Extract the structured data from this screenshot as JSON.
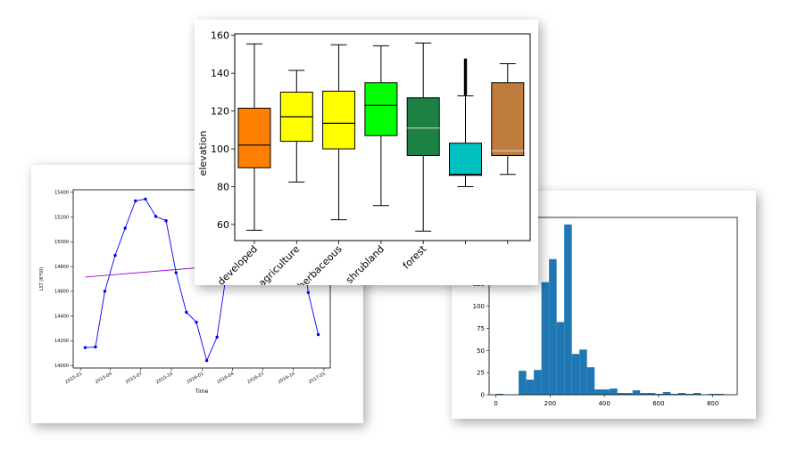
{
  "chart_data": [
    {
      "type": "line",
      "title": "",
      "xlabel": "Time",
      "ylabel": "LST (K*50)",
      "ylim": [
        13980,
        15420
      ],
      "yticks": [
        14000,
        14200,
        14400,
        14600,
        14800,
        15000,
        15200,
        15400
      ],
      "xticks": [
        "2015-01",
        "2015-04",
        "2015-07",
        "2015-10",
        "2016-01",
        "2016-04",
        "2016-07",
        "2016-10",
        "2017-01"
      ],
      "series": [
        {
          "color": "#0000ff",
          "x": [
            "2015-01-15",
            "2015-02-15",
            "2015-03-15",
            "2015-04-15",
            "2015-05-15",
            "2015-06-15",
            "2015-07-15",
            "2015-08-15",
            "2015-09-15",
            "2015-10-15",
            "2015-11-15",
            "2015-12-15",
            "2016-01-15",
            "2016-02-15",
            "2016-03-15",
            "2016-11-15",
            "2016-12-15"
          ],
          "y": [
            14145,
            14150,
            14600,
            14890,
            15110,
            15330,
            15345,
            15205,
            15170,
            14750,
            14430,
            14350,
            14040,
            14230,
            14760,
            14590,
            14250
          ]
        },
        {
          "color": "#9400d3",
          "x": [
            "2015-01-15",
            "2016-12-15"
          ],
          "y": [
            14715,
            14870
          ]
        }
      ]
    },
    {
      "type": "bar",
      "title": "",
      "xlabel": "",
      "ylabel": "",
      "color": "#1f77b4",
      "xlim": [
        -25,
        890
      ],
      "ylim": [
        0,
        200
      ],
      "xticks": [
        0,
        200,
        400,
        600,
        800
      ],
      "yticks": [
        0,
        25,
        50,
        75,
        100,
        125,
        150,
        175,
        200
      ],
      "bin_edges": [
        0,
        28,
        56,
        84,
        112,
        140,
        168,
        196,
        224,
        252,
        280,
        308,
        336,
        364,
        392,
        420,
        448,
        476,
        504,
        532,
        560,
        588,
        616,
        644,
        672,
        700,
        728,
        756,
        784,
        812,
        840
      ],
      "values": [
        1,
        0,
        0,
        27,
        17,
        28,
        127,
        153,
        82,
        192,
        46,
        51,
        31,
        6,
        6,
        7,
        2,
        2,
        5,
        2,
        2,
        1,
        3,
        1,
        2,
        1,
        2,
        0,
        1,
        1
      ]
    },
    {
      "type": "boxplot",
      "title": "",
      "xlabel": "",
      "ylabel": "elevation",
      "ylim": [
        51.5,
        160.8
      ],
      "yticks": [
        60,
        80,
        100,
        120,
        140,
        160
      ],
      "categories": [
        "developed",
        "agriculture",
        "herbaceous",
        "shrubland",
        "forest",
        "",
        ""
      ],
      "colors": [
        "#ff7f00",
        "#ffff00",
        "#ffff00",
        "#00ff00",
        "#1b8244",
        "#00c0c0",
        "#c07c3c"
      ],
      "median_colors": [
        "#000000",
        "#000000",
        "#000000",
        "#000000",
        "#d0d0d0",
        "#000000",
        "#d0d0d0"
      ],
      "boxes": [
        {
          "whislo": 57,
          "q1": 90,
          "med": 102,
          "q3": 121.5,
          "whishi": 155.5
        },
        {
          "whislo": 82.5,
          "q1": 104,
          "med": 117,
          "q3": 130,
          "whishi": 141.5
        },
        {
          "whislo": 62.5,
          "q1": 100,
          "med": 113.5,
          "q3": 130.5,
          "whishi": 155
        },
        {
          "whislo": 70,
          "q1": 107,
          "med": 123,
          "q3": 135,
          "whishi": 154.5
        },
        {
          "whislo": 56.5,
          "q1": 96.5,
          "med": 111,
          "q3": 127,
          "whishi": 156
        },
        {
          "whislo": 80,
          "q1": 86,
          "med": 86.5,
          "q3": 103,
          "whishi": 128,
          "fliers": [
            129,
            130,
            131,
            132,
            133,
            134,
            135,
            136,
            137,
            138,
            139,
            140,
            141,
            142,
            143,
            144,
            145,
            146,
            147
          ]
        },
        {
          "whislo": 86.5,
          "q1": 96.5,
          "med": 99,
          "q3": 135,
          "whishi": 145
        }
      ]
    }
  ]
}
